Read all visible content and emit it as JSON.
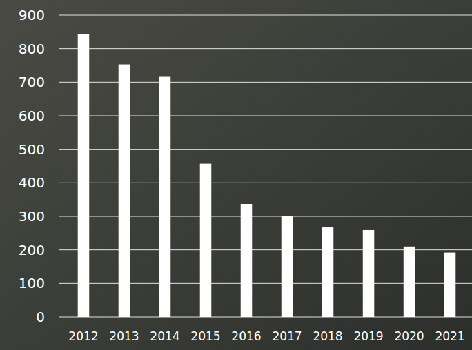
{
  "chart_data": {
    "type": "bar",
    "categories": [
      "2012",
      "2013",
      "2014",
      "2015",
      "2016",
      "2017",
      "2018",
      "2019",
      "2020",
      "2021"
    ],
    "values": [
      843,
      753,
      716,
      457,
      337,
      302,
      267,
      259,
      210,
      192
    ],
    "color": "#ffffff",
    "ylim": [
      0,
      900
    ],
    "yticks": [
      0,
      100,
      200,
      300,
      400,
      500,
      600,
      700,
      800,
      900
    ],
    "grid": true
  }
}
